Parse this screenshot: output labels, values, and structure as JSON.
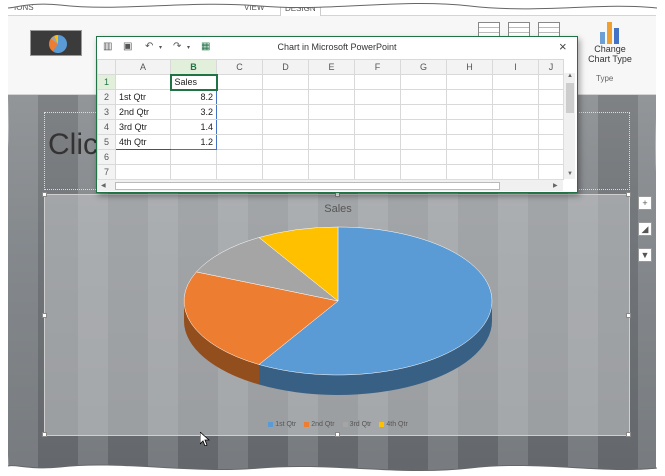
{
  "ribbon": {
    "tab_left": "IONS",
    "tab_view": "VIEW",
    "tab_design": "DESIGN",
    "change_type_label_1": "Change",
    "change_type_label_2": "Chart Type",
    "group_label": "Type",
    "bar_colors": [
      "#6e9fd4",
      "#f0a030",
      "#4472c4"
    ]
  },
  "slide": {
    "title_placeholder": "Clic"
  },
  "spreadsheet": {
    "window_title": "Chart in Microsoft PowerPoint",
    "close_glyph": "×",
    "quick_access_icons": [
      "chart-icon",
      "save-icon",
      "undo-icon",
      "redo-icon",
      "excel-icon"
    ],
    "columns": [
      "A",
      "B",
      "C",
      "D",
      "E",
      "F",
      "G",
      "H",
      "I",
      "J"
    ],
    "rows": [
      {
        "num": "1",
        "a": "",
        "b": "Sales"
      },
      {
        "num": "2",
        "a": "1st Qtr",
        "b": "8.2"
      },
      {
        "num": "3",
        "a": "2nd Qtr",
        "b": "3.2"
      },
      {
        "num": "4",
        "a": "3rd Qtr",
        "b": "1.4"
      },
      {
        "num": "5",
        "a": "4th Qtr",
        "b": "1.2"
      },
      {
        "num": "6",
        "a": "",
        "b": ""
      },
      {
        "num": "7",
        "a": "",
        "b": ""
      }
    ]
  },
  "chart_data": {
    "type": "pie",
    "title": "Sales",
    "categories": [
      "1st Qtr",
      "2nd Qtr",
      "3rd Qtr",
      "4th Qtr"
    ],
    "values": [
      8.2,
      3.2,
      1.4,
      1.2
    ],
    "colors": [
      "#5b9bd5",
      "#ed7d31",
      "#a5a5a5",
      "#ffc000"
    ],
    "legend_position": "bottom",
    "style": "3d"
  },
  "side_tools": [
    "plus-icon",
    "brush-icon",
    "filter-icon"
  ],
  "colors": {
    "accent": "#217346"
  }
}
